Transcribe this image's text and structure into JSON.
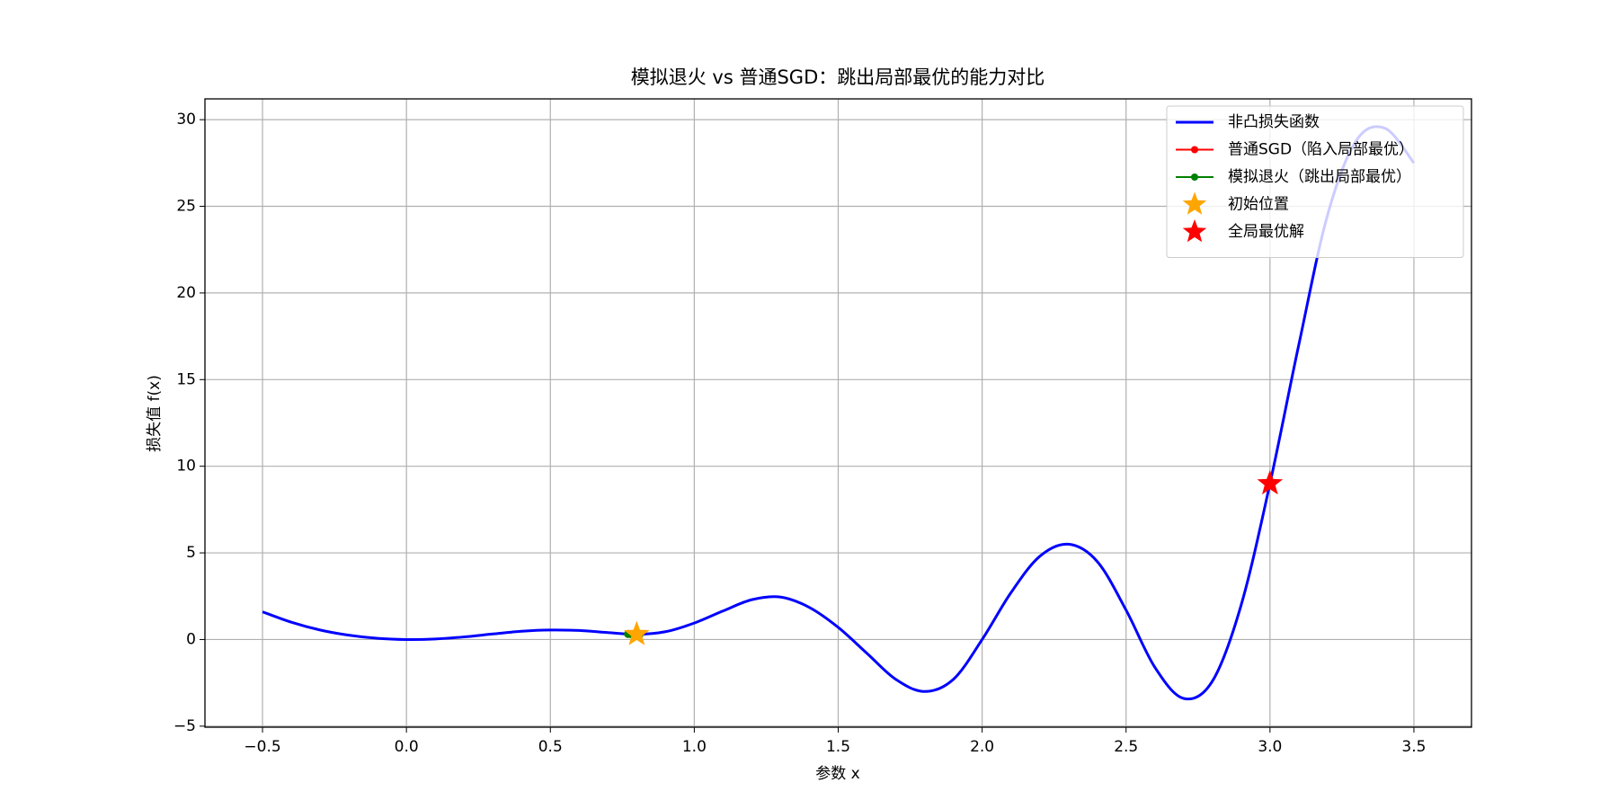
{
  "chart_data": {
    "type": "line",
    "title": "模拟退火 vs 普通SGD：跳出局部最优的能力对比",
    "xlabel": "参数 x",
    "ylabel": "损失值 f(x)",
    "xlim": [
      -0.7,
      3.7
    ],
    "ylim": [
      -5.06,
      31.2
    ],
    "xticks": [
      {
        "value": -0.5,
        "label": "−0.5"
      },
      {
        "value": 0,
        "label": "0.0"
      },
      0.5,
      {
        "value": 1,
        "label": "1.0"
      },
      1.5,
      {
        "value": 2,
        "label": "2.0"
      },
      2.5,
      {
        "value": 3,
        "label": "3.0"
      },
      3.5
    ],
    "yticks": [
      {
        "value": -5,
        "label": "−5"
      },
      0,
      5,
      10,
      15,
      20,
      25,
      30
    ],
    "grid": true,
    "legend": "upper right",
    "series": [
      {
        "name": "非凸损失函数",
        "color": "#0000ff",
        "line": true,
        "marker": "none",
        "x": [
          -0.5,
          -0.4,
          -0.3,
          -0.2,
          -0.1,
          0,
          0.1,
          0.2,
          0.3,
          0.4,
          0.5,
          0.6,
          0.7,
          0.8,
          0.9,
          1.0,
          1.1,
          1.2,
          1.3,
          1.4,
          1.5,
          1.6,
          1.7,
          1.8,
          1.9,
          2.0,
          2.1,
          2.2,
          2.3,
          2.4,
          2.5,
          2.6,
          2.7,
          2.8,
          2.9,
          3.0,
          3.1,
          3.2,
          3.3,
          3.4,
          3.5
        ],
        "values": [
          1.6,
          1.0,
          0.55,
          0.25,
          0.07,
          0,
          0.03,
          0.15,
          0.32,
          0.48,
          0.55,
          0.52,
          0.4,
          0.3,
          0.45,
          0.95,
          1.65,
          2.3,
          2.45,
          1.85,
          0.7,
          -0.8,
          -2.3,
          -3.0,
          -2.3,
          0,
          2.7,
          4.8,
          5.5,
          4.5,
          1.7,
          -1.6,
          -3.4,
          -2.4,
          2.0,
          9.0,
          17.0,
          24.5,
          28.8,
          29.5,
          27.5
        ]
      },
      {
        "name": "普通SGD（陷入局部最优）",
        "color": "#ff0000",
        "line": true,
        "marker": "dot",
        "x": [
          0.8,
          0.795,
          0.79,
          0.788
        ],
        "values": [
          0.3,
          0.3,
          0.3,
          0.3
        ]
      },
      {
        "name": "模拟退火（跳出局部最优）",
        "color": "#008000",
        "line": true,
        "marker": "dot",
        "x": [
          0.8,
          0.78,
          0.81,
          0.77,
          0.79,
          0.785
        ],
        "values": [
          0.3,
          0.31,
          0.3,
          0.32,
          0.3,
          0.3
        ]
      },
      {
        "name": "初始位置",
        "color": "#ffa500",
        "line": false,
        "marker": "star",
        "x": [
          0.8
        ],
        "values": [
          0.3
        ]
      },
      {
        "name": "全局最优解",
        "color": "#ff0000",
        "line": false,
        "marker": "star",
        "x": [
          3.0
        ],
        "values": [
          9.0
        ]
      }
    ]
  }
}
